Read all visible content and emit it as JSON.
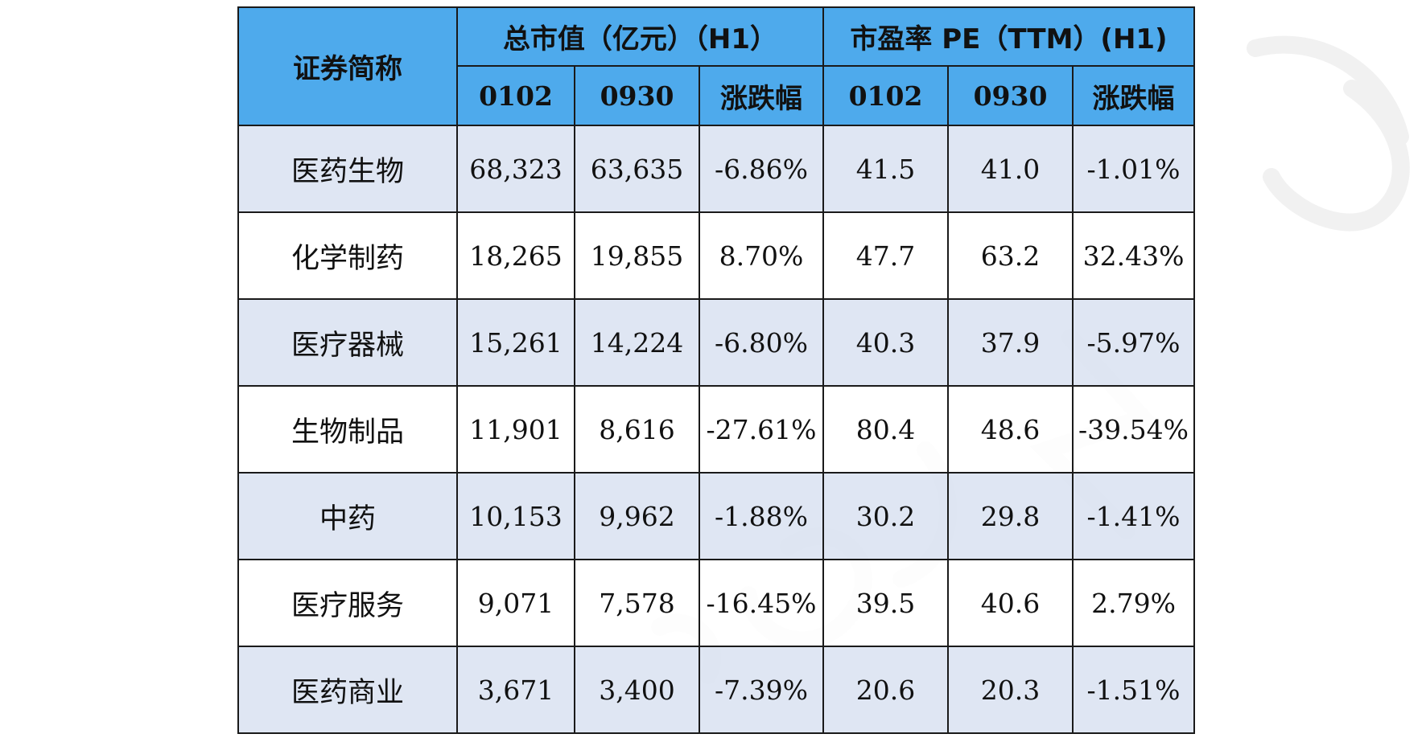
{
  "table": {
    "header": {
      "name_col": "证券简称",
      "group_market_cap": "总市值（亿元）（H1）",
      "group_pe": "市盈率 PE（TTM）(H1)",
      "sub_cols": [
        "0102",
        "0930",
        "涨跌幅",
        "0102",
        "0930",
        "涨跌幅"
      ]
    },
    "rows": [
      {
        "name": "医药生物",
        "cap_0102": "68,323",
        "cap_0930": "63,635",
        "cap_change": "-6.86%",
        "pe_0102": "41.5",
        "pe_0930": "41.0",
        "pe_change": "-1.01%"
      },
      {
        "name": "化学制药",
        "cap_0102": "18,265",
        "cap_0930": "19,855",
        "cap_change": "8.70%",
        "pe_0102": "47.7",
        "pe_0930": "63.2",
        "pe_change": "32.43%"
      },
      {
        "name": "医疗器械",
        "cap_0102": "15,261",
        "cap_0930": "14,224",
        "cap_change": "-6.80%",
        "pe_0102": "40.3",
        "pe_0930": "37.9",
        "pe_change": "-5.97%"
      },
      {
        "name": "生物制品",
        "cap_0102": "11,901",
        "cap_0930": "8,616",
        "cap_change": "-27.61%",
        "pe_0102": "80.4",
        "pe_0930": "48.6",
        "pe_change": "-39.54%"
      },
      {
        "name": "中药",
        "cap_0102": "10,153",
        "cap_0930": "9,962",
        "cap_change": "-1.88%",
        "pe_0102": "30.2",
        "pe_0930": "29.8",
        "pe_change": "-1.41%"
      },
      {
        "name": "医疗服务",
        "cap_0102": "9,071",
        "cap_0930": "7,578",
        "cap_change": "-16.45%",
        "pe_0102": "39.5",
        "pe_0930": "40.6",
        "pe_change": "2.79%"
      },
      {
        "name": "医药商业",
        "cap_0102": "3,671",
        "cap_0930": "3,400",
        "cap_change": "-7.39%",
        "pe_0102": "20.6",
        "pe_0930": "20.3",
        "pe_change": "-1.51%"
      }
    ]
  },
  "colors": {
    "header_bg": "#4eaaec",
    "odd_row_bg": "#dce4f2",
    "even_row_bg": "#ffffff",
    "border": "#1a1a1a"
  }
}
